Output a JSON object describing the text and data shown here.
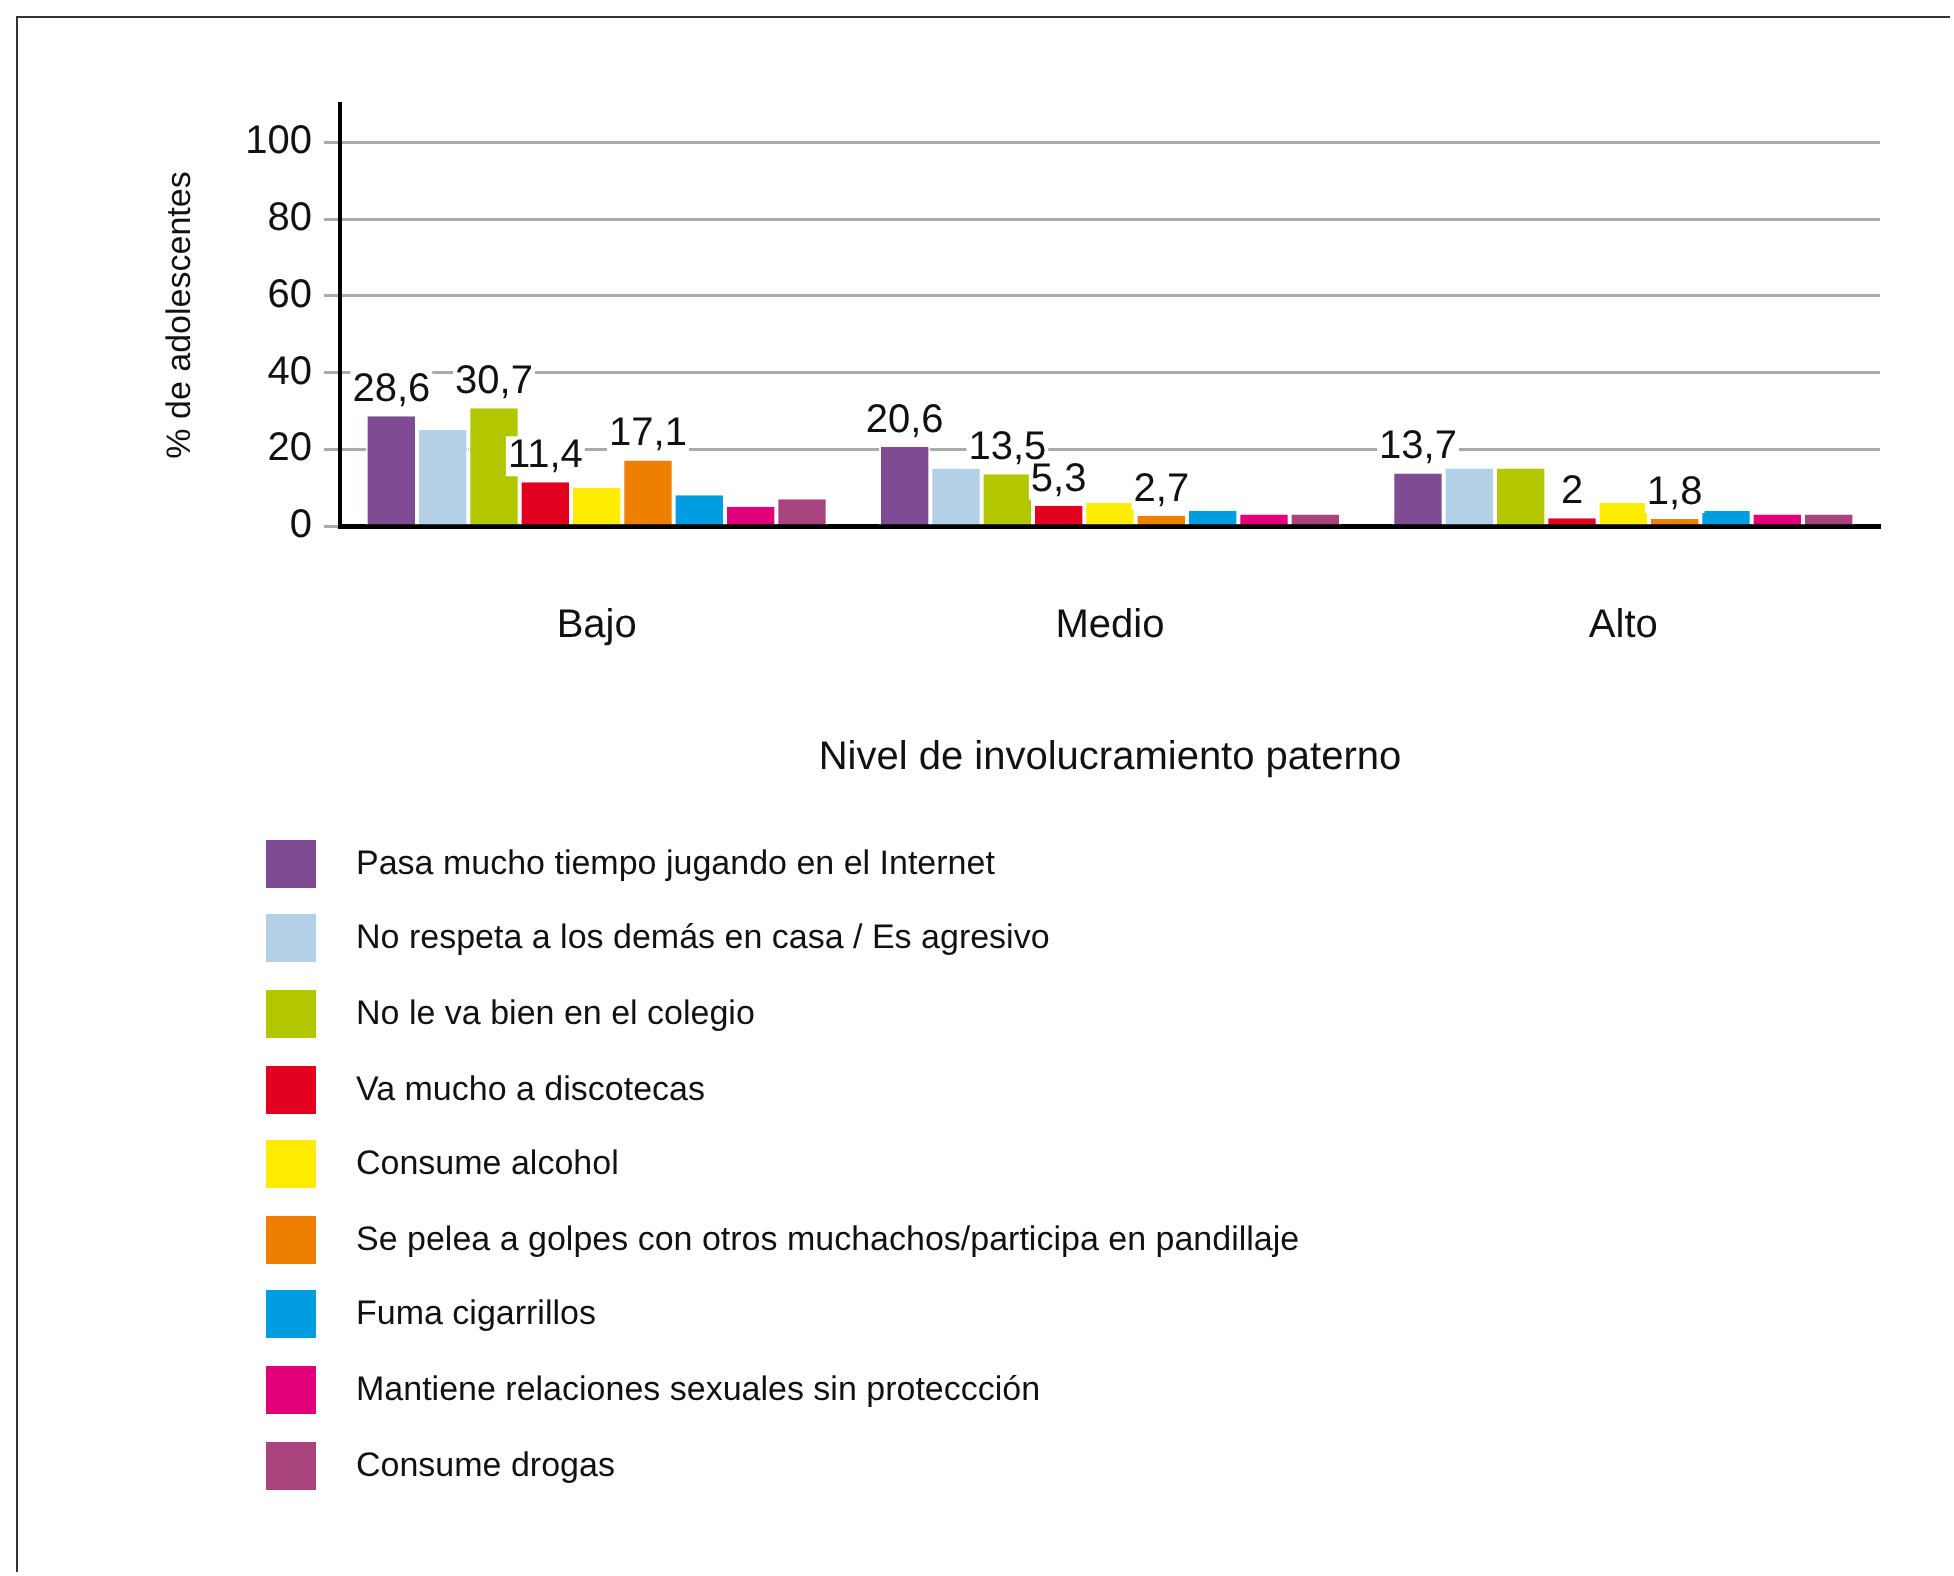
{
  "chart_data": {
    "type": "bar",
    "xlabel": "Nivel de involucramiento paterno",
    "ylabel": "% de adolescentes",
    "categories": [
      "Bajo",
      "Medio",
      "Alto"
    ],
    "ylim": [
      0,
      110
    ],
    "yticks": [
      0,
      20,
      40,
      60,
      80,
      100
    ],
    "grid": "y",
    "legend": "bottom",
    "series": [
      {
        "name": "Pasa mucho tiempo jugando en el Internet",
        "color": "#7f4b92",
        "values": [
          28.6,
          20.6,
          13.7
        ],
        "value_labels": [
          "28,6",
          "20,6",
          "13,7"
        ]
      },
      {
        "name": "No respeta a los demás en casa / Es agresivo",
        "color": "#b3d0e6",
        "values": [
          25,
          15,
          15
        ],
        "value_labels": [
          null,
          null,
          null
        ]
      },
      {
        "name": "No le va bien en el colegio",
        "color": "#b2c700",
        "values": [
          30.7,
          13.5,
          15
        ],
        "value_labels": [
          "30,7",
          "13,5",
          null
        ]
      },
      {
        "name": "Va mucho a discotecas",
        "color": "#e2001e",
        "values": [
          11.4,
          5.3,
          2
        ],
        "value_labels": [
          "11,4",
          "5,3",
          "2"
        ]
      },
      {
        "name": "Consume alcohol",
        "color": "#ffec00",
        "values": [
          10,
          6,
          6
        ],
        "value_labels": [
          null,
          null,
          null
        ]
      },
      {
        "name": "Se pelea a golpes con otros muchachos/participa en pandillaje",
        "color": "#ee7f00",
        "values": [
          17.1,
          2.7,
          1.8
        ],
        "value_labels": [
          "17,1",
          "2,7",
          "1,8"
        ]
      },
      {
        "name": "Fuma cigarrillos",
        "color": "#009ee0",
        "values": [
          8,
          4,
          4
        ],
        "value_labels": [
          null,
          null,
          null
        ]
      },
      {
        "name": "Mantiene relaciones sexuales sin proteccción",
        "color": "#e2007a",
        "values": [
          5,
          3,
          3
        ],
        "value_labels": [
          null,
          null,
          null
        ]
      },
      {
        "name": "Consume drogas",
        "color": "#a8437e",
        "values": [
          7,
          3,
          3
        ],
        "value_labels": [
          null,
          null,
          null
        ]
      }
    ]
  }
}
